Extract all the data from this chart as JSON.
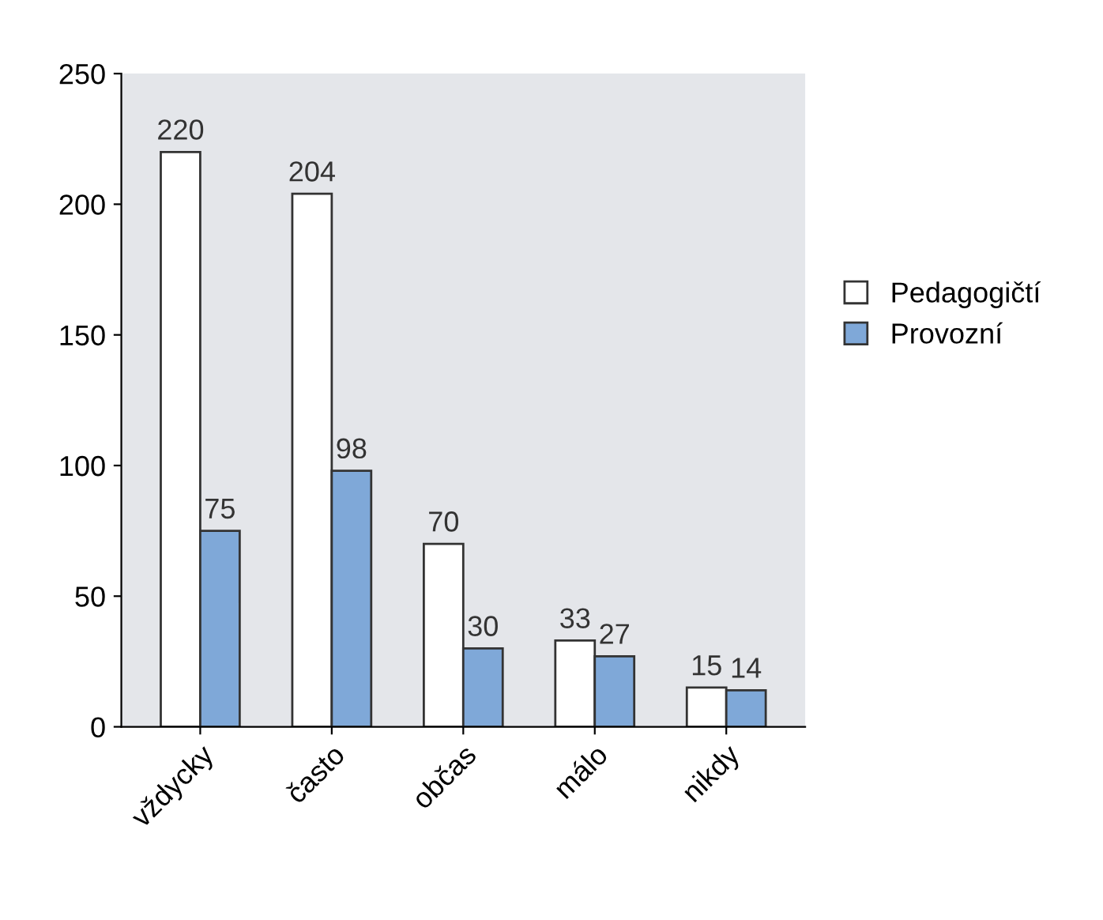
{
  "chart_data": {
    "type": "bar",
    "categories": [
      "vždycky",
      "často",
      "občas",
      "málo",
      "nikdy"
    ],
    "series": [
      {
        "name": "Pedagogičtí",
        "color": "#ffffff",
        "values": [
          220,
          204,
          70,
          33,
          15
        ]
      },
      {
        "name": "Provozní",
        "color": "#7fa8d8",
        "values": [
          75,
          98,
          30,
          27,
          14
        ]
      }
    ],
    "ylim": [
      0,
      250
    ],
    "yticks": [
      0,
      50,
      100,
      150,
      200,
      250
    ],
    "data_labels": true,
    "legend": "right",
    "grid": false
  }
}
